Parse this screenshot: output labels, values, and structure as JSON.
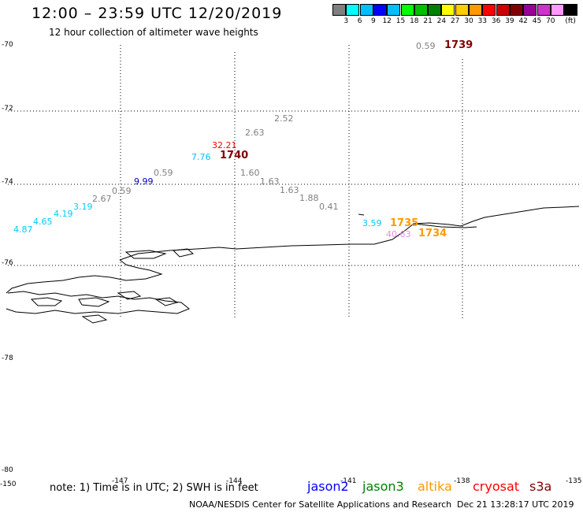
{
  "header": {
    "title": "12:00 – 23:59 UTC 12/20/2019",
    "subtitle": "12 hour collection of altimeter wave heights"
  },
  "legend": {
    "unit": "(ft)",
    "colors": [
      "#808080",
      "#00ffff",
      "#00bfff",
      "#0000ff",
      "#00bfff",
      "#00ff00",
      "#00bf00",
      "#008000",
      "#ffff00",
      "#ffcc00",
      "#ff9900",
      "#ff0000",
      "#cc0000",
      "#800000",
      "#990099",
      "#cc33cc",
      "#ff99ff",
      "#000000"
    ],
    "labels": [
      "3",
      "6",
      "9",
      "12",
      "15",
      "18",
      "21",
      "24",
      "27",
      "30",
      "33",
      "36",
      "39",
      "42",
      "45",
      "70"
    ]
  },
  "axes": {
    "lat_labels": [
      "-70",
      "-72",
      "-74",
      "-76",
      "-78",
      "-80"
    ],
    "lon_labels": [
      "-150",
      "-147",
      "-144",
      "-141",
      "-138",
      "-135"
    ]
  },
  "wave_points": [
    {
      "text": "0.59",
      "color": "#808080"
    },
    {
      "text": "2.52",
      "color": "#808080"
    },
    {
      "text": "2.63",
      "color": "#808080"
    },
    {
      "text": "32.21",
      "color": "#ff0000"
    },
    {
      "text": "7.76",
      "color": "#00bfff"
    },
    {
      "text": "0.59",
      "color": "#808080"
    },
    {
      "text": "1.60",
      "color": "#808080"
    },
    {
      "text": "9.99",
      "color": "#0000cc"
    },
    {
      "text": "1.63",
      "color": "#808080"
    },
    {
      "text": "0.59",
      "color": "#808080"
    },
    {
      "text": "1.63",
      "color": "#808080"
    },
    {
      "text": "2.67",
      "color": "#808080"
    },
    {
      "text": "1.88",
      "color": "#808080"
    },
    {
      "text": "3.19",
      "color": "#00ccff"
    },
    {
      "text": "0.41",
      "color": "#808080"
    },
    {
      "text": "4.19",
      "color": "#00ccff"
    },
    {
      "text": "4.65",
      "color": "#00ccff"
    },
    {
      "text": "4.87",
      "color": "#00ccff"
    },
    {
      "text": "3.59",
      "color": "#00ccff"
    },
    {
      "text": "40.63",
      "color": "#ee88ee"
    }
  ],
  "time_labels": [
    {
      "text": "1739",
      "color": "#800000"
    },
    {
      "text": "1740",
      "color": "#800000"
    },
    {
      "text": "1735",
      "color": "#ff9900"
    },
    {
      "text": "1734",
      "color": "#ff9900"
    }
  ],
  "footer": {
    "note": "note:  1) Time is in UTC;  2) SWH is in feet",
    "satellites": [
      {
        "name": "jason2",
        "color": "#0000ff"
      },
      {
        "name": "jason3",
        "color": "#008000"
      },
      {
        "name": "altika",
        "color": "#ff9900"
      },
      {
        "name": "cryosat",
        "color": "#ff0000"
      },
      {
        "name": "s3a",
        "color": "#800000"
      }
    ],
    "credit": "NOAA/NESDIS Center for Satellite Applications and Research",
    "timestamp": "Dec 21 13:28:17 UTC 2019"
  }
}
